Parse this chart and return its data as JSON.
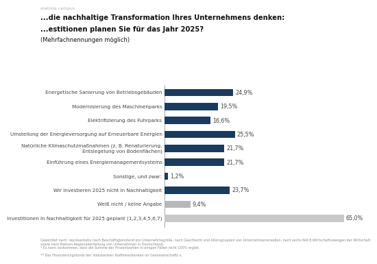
{
  "title_line1": "...die nachhaltige Transformation Ihres Unternehmens denken:",
  "title_line2": "...estitionen planen Sie für das Jahr 2025?",
  "title_line3": "(Mehrfachnennungen möglich)",
  "source_label": "statista campus",
  "categories": [
    "Energetische Sanierung von Betriebsgebäuden",
    "Modernisierung des Maschinenparks",
    "Elektrifizierung des Fuhrparks",
    "Umstellung der Energieversorgung auf Erneuerbare Energien",
    "Natürliche Klimaschutzmaßnahmen (z. B. Renaturierung,\nEntsiegelung von Bodenflächen)",
    "Einführung eines Energiemanagementsystems",
    "Sonstige, und zwar:",
    "Wir investieren 2025 nicht in Nachhaltigkeit",
    "Weiß nicht / keine Angabe",
    "Investitionen in Nachhaltigkeit für 2025 geplant (1,2,3,4,5,6,7)"
  ],
  "values": [
    24.9,
    19.5,
    16.6,
    25.5,
    21.7,
    21.7,
    1.2,
    23.7,
    9.4,
    65.0
  ],
  "bar_colors": [
    "#1b3a5c",
    "#1b3a5c",
    "#1b3a5c",
    "#1b3a5c",
    "#1b3a5c",
    "#1b3a5c",
    "#1b3a5c",
    "#1b3a5c",
    "#b8b8b8",
    "#c8c8c8"
  ],
  "xlim": [
    0,
    70
  ],
  "label_color": "#444444",
  "title_color": "#111111",
  "background_color": "#ffffff",
  "footnote_lines": [
    "Gewichtet nach: repräsentativ nach Beschäftigtenstand pro Unternehmsgröße, nach Geschlecht und Altersgruppen von Unternehmensmedien, nach sechs NACE-Wirtschaftszweigen der Wirtschaft sowie nach Nielson-Regionaleinteilung von Unternehmen in Deutschland.",
    "* Es kann vorkommen, dass die Summe der Prozentzahlen in einigen Fällen nicht 100% ergibt.",
    "** Das Finanzierungsfonds der Volksbanken Raiffeisenbanken im Genossenschafts s."
  ],
  "last_bar_label": "6",
  "bar_height": 0.52,
  "value_fontsize": 5.8,
  "ytick_fontsize": 5.2
}
